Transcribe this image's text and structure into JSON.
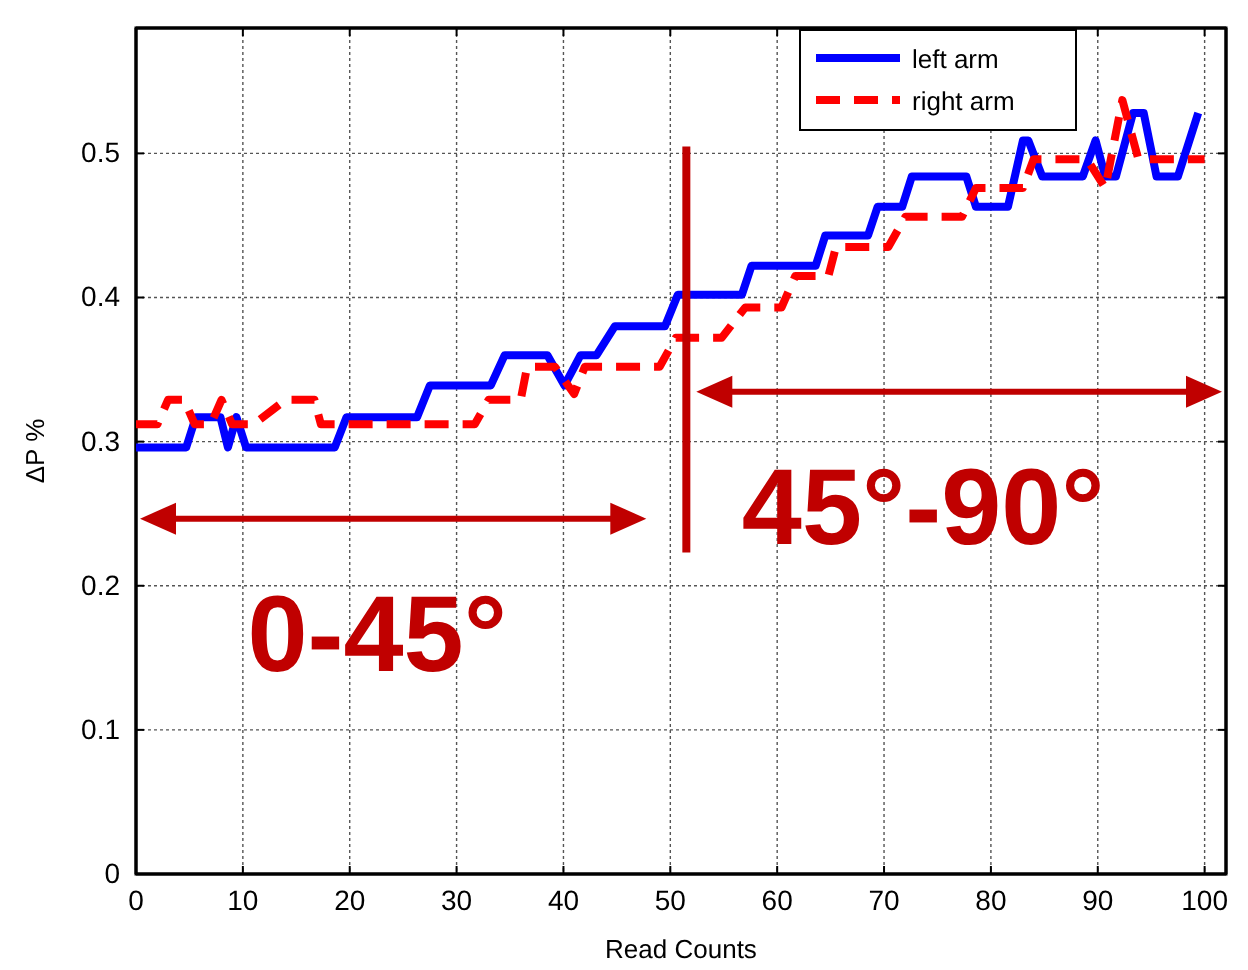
{
  "chart_data": {
    "type": "line",
    "xlabel": "Read Counts",
    "ylabel": "ΔP %",
    "xlim": [
      0,
      102
    ],
    "ylim": [
      0,
      0.587
    ],
    "xticks": [
      0,
      10,
      20,
      30,
      40,
      50,
      60,
      70,
      80,
      90,
      100
    ],
    "yticks": [
      0,
      0.1,
      0.2,
      0.3,
      0.4,
      0.5
    ],
    "grid": true,
    "legend": "top right",
    "series": [
      {
        "name": "left arm",
        "color": "#0000ff",
        "line_style": "solid",
        "x": [
          0,
          4.7,
          5.6,
          7.9,
          8.6,
          9.4,
          10.3,
          18.6,
          19.7,
          26.3,
          27.5,
          33.2,
          34.5,
          38.5,
          40.1,
          41.6,
          43.1,
          44.8,
          49.5,
          50.7,
          56.7,
          57.6,
          63.6,
          64.5,
          68.5,
          69.4,
          71.7,
          72.6,
          77.7,
          78.6,
          81.6,
          83,
          83.5,
          84.8,
          88.6,
          89.8,
          90.7,
          91.7,
          93.3,
          94.3,
          95.5,
          96.5,
          97.5,
          99.4
        ],
        "values": [
          0.296,
          0.296,
          0.317,
          0.317,
          0.296,
          0.317,
          0.296,
          0.296,
          0.317,
          0.317,
          0.339,
          0.339,
          0.36,
          0.36,
          0.339,
          0.36,
          0.36,
          0.38,
          0.38,
          0.402,
          0.402,
          0.422,
          0.422,
          0.443,
          0.443,
          0.463,
          0.463,
          0.484,
          0.484,
          0.463,
          0.463,
          0.509,
          0.509,
          0.484,
          0.484,
          0.509,
          0.484,
          0.484,
          0.528,
          0.528,
          0.484,
          0.484,
          0.484,
          0.528
        ]
      },
      {
        "name": "right arm",
        "color": "#ff0000",
        "line_style": "dashed",
        "x": [
          0,
          2,
          3,
          4.5,
          5.5,
          7,
          8,
          9,
          11,
          14,
          16.7,
          17.3,
          31.7,
          33,
          36,
          36.6,
          39.2,
          41,
          42,
          49,
          50.5,
          54.8,
          57,
          60.4,
          61.7,
          64.8,
          65.5,
          70.4,
          72,
          77.3,
          78.6,
          83,
          84,
          89,
          90.7,
          92.3,
          93.8,
          96,
          100
        ],
        "values": [
          0.312,
          0.312,
          0.329,
          0.329,
          0.312,
          0.312,
          0.329,
          0.312,
          0.312,
          0.329,
          0.329,
          0.312,
          0.312,
          0.329,
          0.329,
          0.352,
          0.352,
          0.333,
          0.352,
          0.352,
          0.372,
          0.372,
          0.393,
          0.393,
          0.415,
          0.415,
          0.435,
          0.435,
          0.456,
          0.456,
          0.476,
          0.476,
          0.496,
          0.496,
          0.476,
          0.537,
          0.496,
          0.496,
          0.496
        ]
      }
    ],
    "ref_lines": [
      {
        "axis": "x",
        "value": 51.5,
        "color": "#c00000"
      }
    ],
    "annotations": [
      "0-45°",
      "45°-90°"
    ]
  }
}
